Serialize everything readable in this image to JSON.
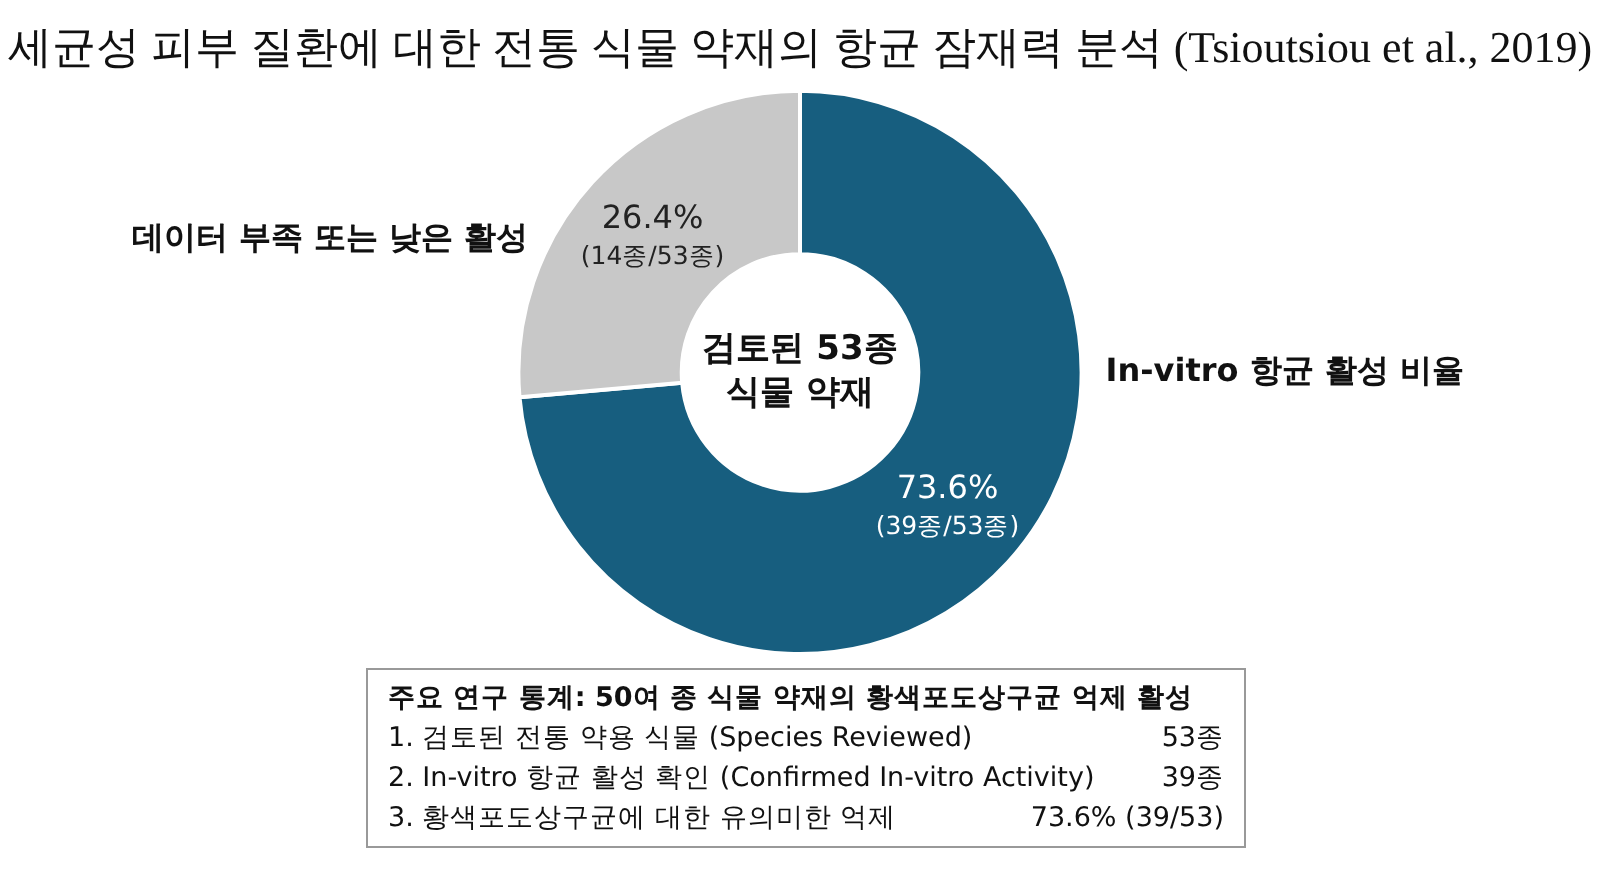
{
  "chart_data": {
    "type": "donut",
    "title": "세균성 피부 질환에 대한 전통 식물 약재의 항균 잠재력 분석 (Tsioutsiou et al., 2019)",
    "categories": [
      "In-vitro 항균 활성 비율",
      "데이터 부족 또는 낮은 활성"
    ],
    "values": [
      73.6,
      26.4
    ],
    "colors": [
      "#175e7f",
      "#c8c8c8"
    ],
    "value_labels": [
      "73.6%\n(39종/53종)",
      "26.4%\n(14종/53종)"
    ],
    "annotations": [
      "검토된 53종\n식물 약재",
      "주요 연구 통계: 50여 종 식물 약재의 황색포도상구균 억제 활성",
      "1.  검토된 전통 약용 식물 (Species Reviewed)",
      "53종",
      "2.  In-vitro 항균 활성 확인 (Confirmed In-vitro Activity)",
      "39종",
      "3.  황색포도상구균에 대한 유의미한 억제",
      "73.6% (39/53)"
    ],
    "legend": false
  }
}
